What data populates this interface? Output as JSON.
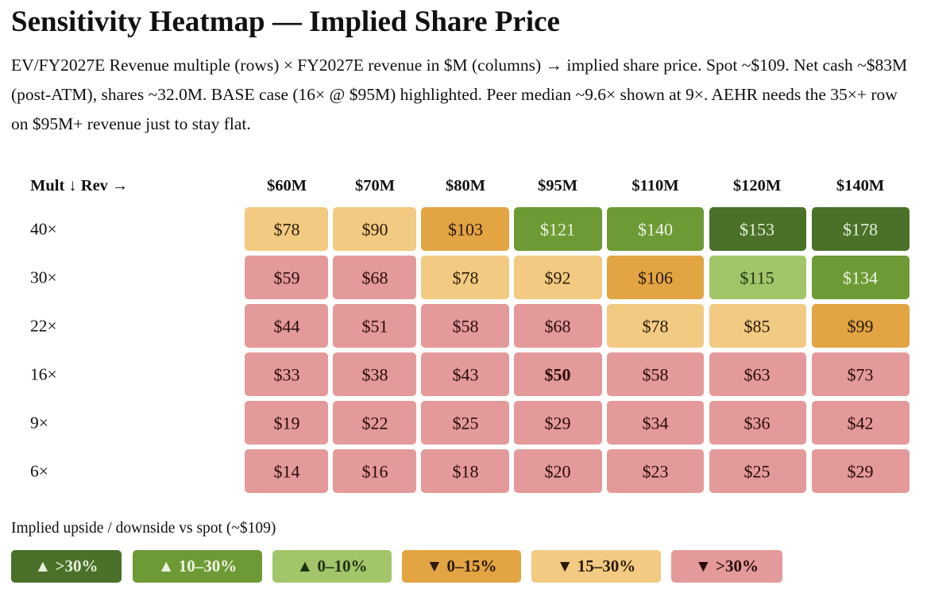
{
  "title": "Sensitivity Heatmap — Implied Share Price",
  "description": "EV/FY2027E Revenue multiple (rows) × FY2027E revenue in $M (columns) → implied share price. Spot ~$109. Net cash ~$83M (post-ATM), shares ~32.0M. BASE case (16× @ $95M) highlighted. Peer median ~9.6× shown at 9×. AEHR needs the 35×+ row on $95M+ revenue just to stay flat.",
  "chart_data": {
    "type": "heatmap",
    "corner_label": "Mult ↓ Rev →",
    "columns": [
      "$60M",
      "$70M",
      "$80M",
      "$95M",
      "$110M",
      "$120M",
      "$140M"
    ],
    "rows": [
      "40×",
      "30×",
      "22×",
      "16×",
      "9×",
      "6×"
    ],
    "values": [
      [
        78,
        90,
        103,
        121,
        140,
        153,
        178
      ],
      [
        59,
        68,
        78,
        92,
        106,
        115,
        134
      ],
      [
        44,
        51,
        58,
        68,
        78,
        85,
        99
      ],
      [
        33,
        38,
        43,
        50,
        58,
        63,
        73
      ],
      [
        19,
        22,
        25,
        29,
        34,
        36,
        42
      ],
      [
        14,
        16,
        18,
        20,
        23,
        25,
        29
      ]
    ],
    "value_prefix": "$",
    "spot": 109,
    "highlight": {
      "row": "16×",
      "column": "$95M"
    },
    "legend_title": "Implied upside / downside vs spot (~$109)",
    "legend": [
      {
        "label": "▲ >30%",
        "min": 0.3,
        "max": null,
        "color": "#4a7029",
        "text_color": "#e6f0d8"
      },
      {
        "label": "▲ 10–30%",
        "min": 0.1,
        "max": 0.3,
        "color": "#6e9a36",
        "text_color": "#eef4e2"
      },
      {
        "label": "▲ 0–10%",
        "min": 0.0,
        "max": 0.1,
        "color": "#a3c56a",
        "text_color": "#1e3210"
      },
      {
        "label": "▼ 0–15%",
        "min": -0.15,
        "max": 0.0,
        "color": "#e3a444",
        "text_color": "#2a1a05"
      },
      {
        "label": "▼ 15–30%",
        "min": -0.3,
        "max": -0.15,
        "color": "#f2ca82",
        "text_color": "#2a1a05"
      },
      {
        "label": "▼ >30%",
        "min": null,
        "max": -0.3,
        "color": "#e49a9a",
        "text_color": "#2a0a0a"
      }
    ]
  }
}
